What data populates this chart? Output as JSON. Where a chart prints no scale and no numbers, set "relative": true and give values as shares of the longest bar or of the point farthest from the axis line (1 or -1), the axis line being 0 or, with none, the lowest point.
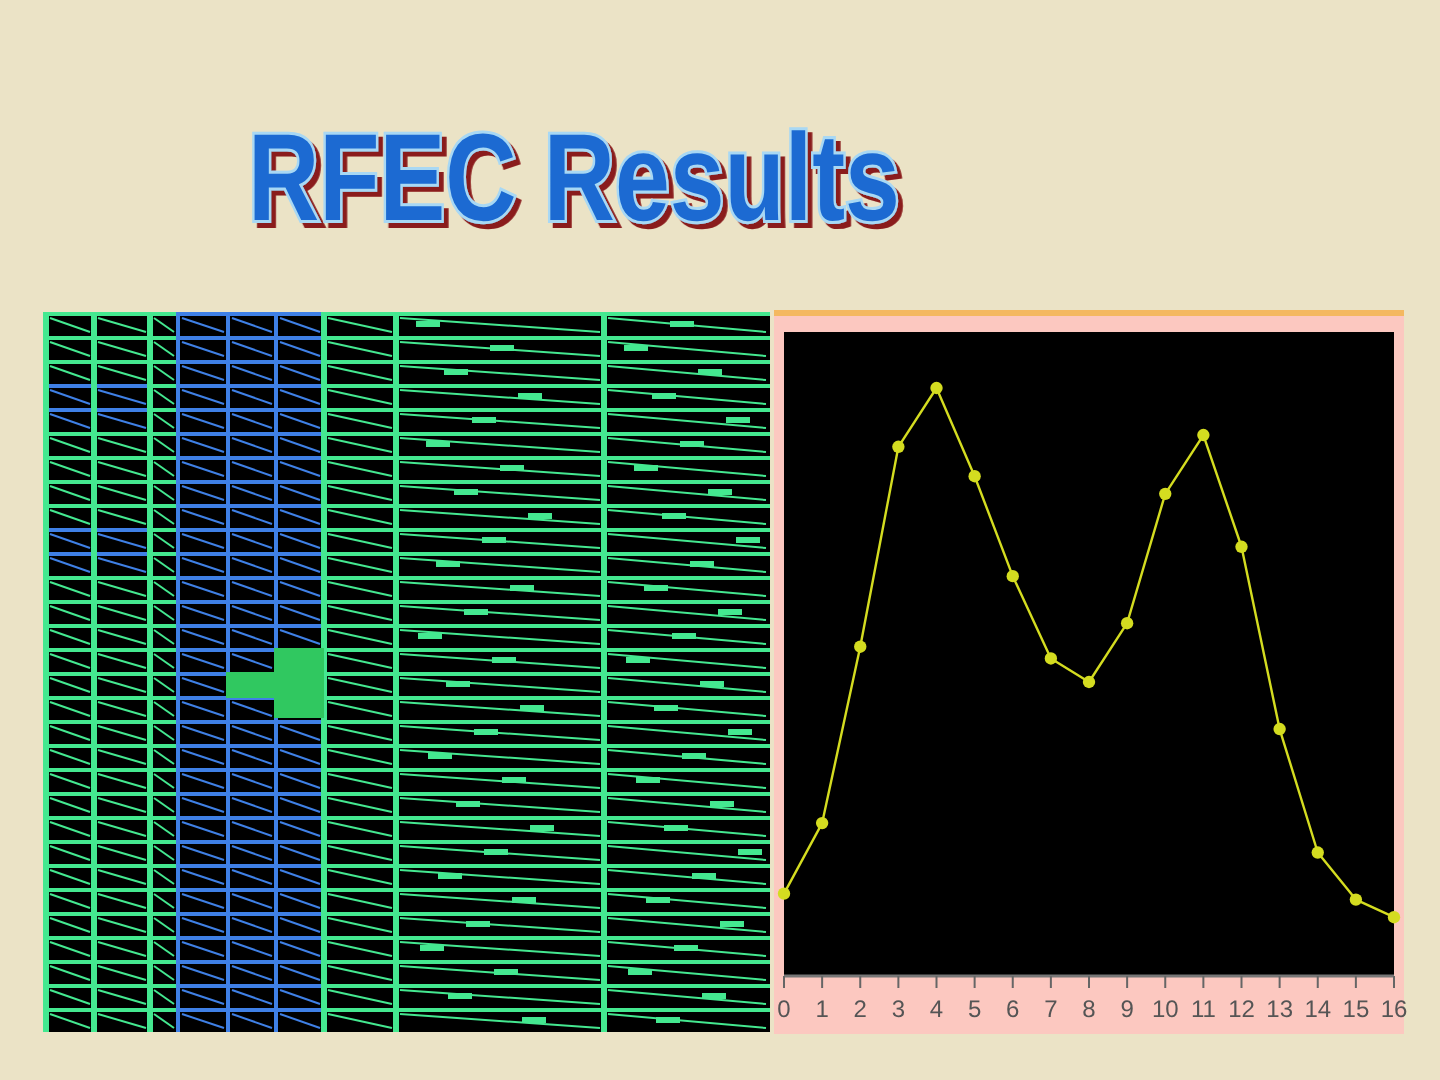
{
  "chart_data": {
    "type": "line",
    "title": "RFEC Results",
    "x": [
      0,
      1,
      2,
      3,
      4,
      5,
      6,
      7,
      8,
      9,
      10,
      11,
      12,
      13,
      14,
      15,
      16
    ],
    "series": [
      {
        "color": "#d4dc20",
        "values": [
          0.14,
          0.26,
          0.56,
          0.9,
          1,
          0.85,
          0.68,
          0.54,
          0.5,
          0.6,
          0.82,
          0.92,
          0.73,
          0.42,
          0.21,
          0.13,
          0.1
        ]
      }
    ],
    "relative": true,
    "xlim": [
      0,
      16
    ],
    "xticks": [
      0,
      1,
      2,
      3,
      4,
      5,
      6,
      7,
      8,
      9,
      10,
      11,
      12,
      13,
      14,
      15,
      16
    ],
    "marker": "circle",
    "line_style": "solid",
    "tick_labels": "x"
  }
}
